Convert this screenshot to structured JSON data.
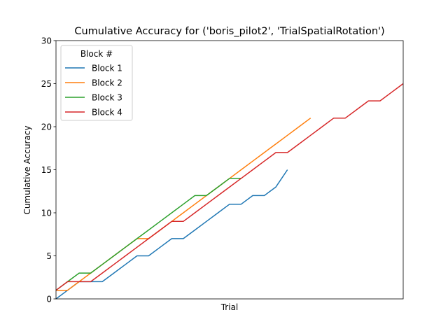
{
  "chart_data": {
    "type": "line",
    "title": "Cumulative Accuracy for ('boris_pilot2', 'TrialSpatialRotation')",
    "xlabel": "Trial",
    "ylabel": "Cumulative Accuracy",
    "xlim": [
      1,
      31
    ],
    "ylim": [
      0,
      30
    ],
    "yticks": [
      0,
      5,
      10,
      15,
      20,
      25,
      30
    ],
    "show_xticks": false,
    "grid": false,
    "legend": {
      "title": "Block #",
      "placement": "upper-left"
    },
    "series": [
      {
        "name": "Block 1",
        "color": "#1f77b4",
        "x": [
          1,
          2,
          3,
          4,
          5,
          6,
          7,
          8,
          9,
          10,
          11,
          12,
          13,
          14,
          15,
          16,
          17,
          18,
          19,
          20,
          21
        ],
        "y": [
          0,
          1,
          2,
          2,
          2,
          3,
          4,
          5,
          5,
          6,
          7,
          7,
          8,
          9,
          10,
          11,
          11,
          12,
          12,
          13,
          15
        ]
      },
      {
        "name": "Block 2",
        "color": "#ff7f0e",
        "x": [
          1,
          2,
          3,
          4,
          5,
          6,
          7,
          8,
          9,
          10,
          11,
          12,
          13,
          14,
          15,
          16,
          17,
          18,
          19,
          20,
          21,
          22,
          23
        ],
        "y": [
          1,
          1,
          2,
          3,
          4,
          5,
          6,
          7,
          7,
          8,
          9,
          10,
          11,
          12,
          13,
          14,
          15,
          16,
          17,
          18,
          19,
          20,
          21
        ]
      },
      {
        "name": "Block 3",
        "color": "#2ca02c",
        "x": [
          1,
          2,
          3,
          4,
          5,
          6,
          7,
          8,
          9,
          10,
          11,
          12,
          13,
          14,
          15,
          16,
          17
        ],
        "y": [
          1,
          2,
          3,
          3,
          4,
          5,
          6,
          7,
          8,
          9,
          10,
          11,
          12,
          12,
          13,
          14,
          14
        ]
      },
      {
        "name": "Block 4",
        "color": "#d62728",
        "x": [
          1,
          2,
          3,
          4,
          5,
          6,
          7,
          8,
          9,
          10,
          11,
          12,
          13,
          14,
          15,
          16,
          17,
          18,
          19,
          20,
          21,
          22,
          23,
          24,
          25,
          26,
          27,
          28,
          29,
          30,
          31
        ],
        "y": [
          1,
          2,
          2,
          2,
          3,
          4,
          5,
          6,
          7,
          8,
          9,
          9,
          10,
          11,
          12,
          13,
          14,
          15,
          16,
          17,
          17,
          18,
          19,
          20,
          21,
          21,
          22,
          23,
          23,
          24,
          25
        ]
      }
    ]
  }
}
